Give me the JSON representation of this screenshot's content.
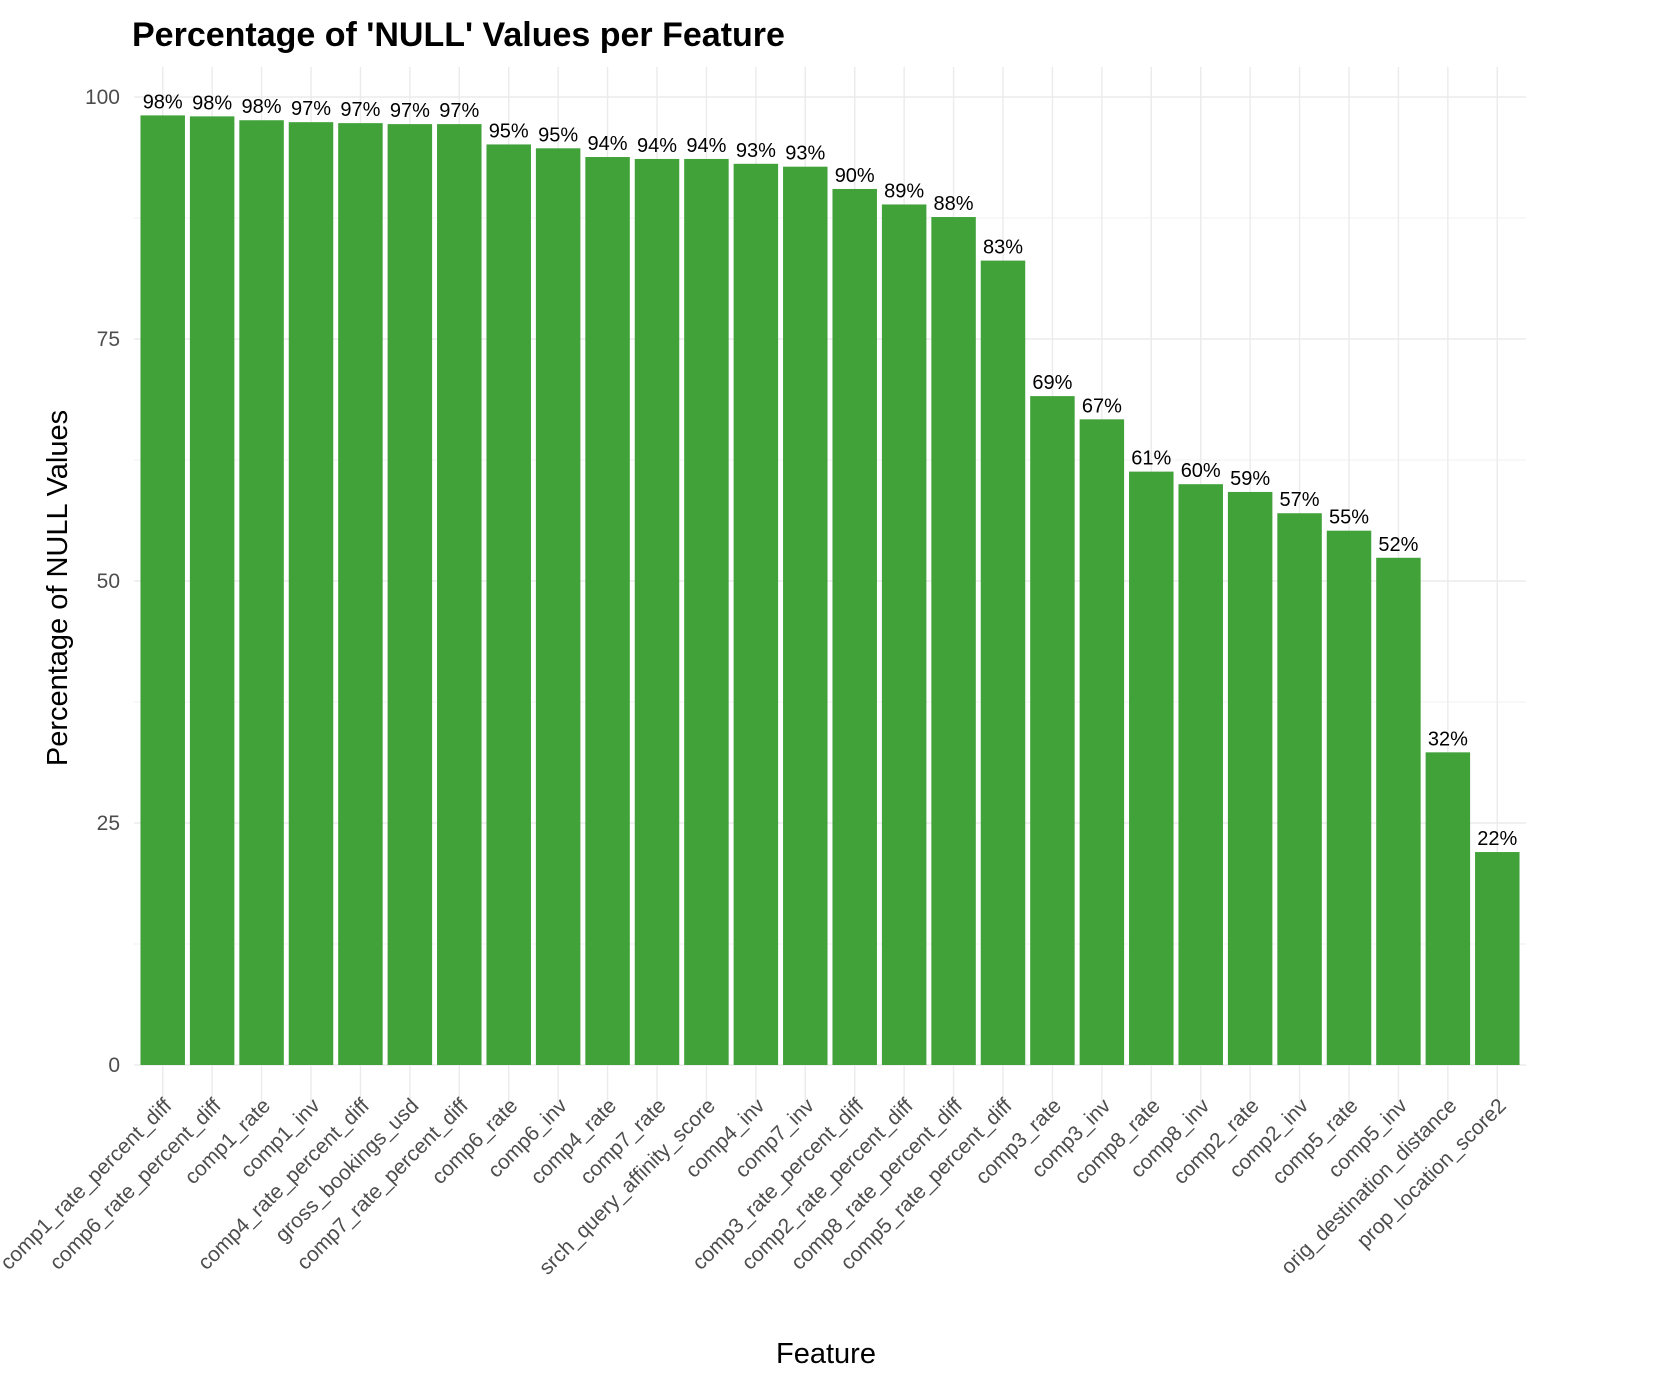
{
  "chart_data": {
    "type": "bar",
    "title": "Percentage of 'NULL' Values per Feature",
    "xlabel": "Feature",
    "ylabel": "Percentage of NULL Values",
    "ylim": [
      0,
      100
    ],
    "yticks": [
      "0",
      "25",
      "50",
      "75",
      "100"
    ],
    "grid": true,
    "bar_color": "#41a23a",
    "categories": [
      "comp1_rate_percent_diff",
      "comp6_rate_percent_diff",
      "comp1_rate",
      "comp1_inv",
      "comp4_rate_percent_diff",
      "gross_bookings_usd",
      "comp7_rate_percent_diff",
      "comp6_rate",
      "comp6_inv",
      "comp4_rate",
      "comp7_rate",
      "srch_query_affinity_score",
      "comp4_inv",
      "comp7_inv",
      "comp3_rate_percent_diff",
      "comp2_rate_percent_diff",
      "comp8_rate_percent_diff",
      "comp5_rate_percent_diff",
      "comp3_rate",
      "comp3_inv",
      "comp8_rate",
      "comp8_inv",
      "comp2_rate",
      "comp2_inv",
      "comp5_rate",
      "comp5_inv",
      "orig_destination_distance",
      "prop_location_score2"
    ],
    "values": [
      98.1,
      98.0,
      97.6,
      97.4,
      97.3,
      97.2,
      97.2,
      95.1,
      94.7,
      93.8,
      93.6,
      93.6,
      93.1,
      92.8,
      90.5,
      88.9,
      87.6,
      83.1,
      69.1,
      66.7,
      61.3,
      60.0,
      59.2,
      57.0,
      55.2,
      52.4,
      32.3,
      22.0
    ],
    "data_labels": [
      "98%",
      "98%",
      "98%",
      "97%",
      "97%",
      "97%",
      "97%",
      "95%",
      "95%",
      "94%",
      "94%",
      "94%",
      "93%",
      "93%",
      "90%",
      "89%",
      "88%",
      "83%",
      "69%",
      "67%",
      "61%",
      "60%",
      "59%",
      "57%",
      "55%",
      "52%",
      "32%",
      "22%"
    ]
  }
}
